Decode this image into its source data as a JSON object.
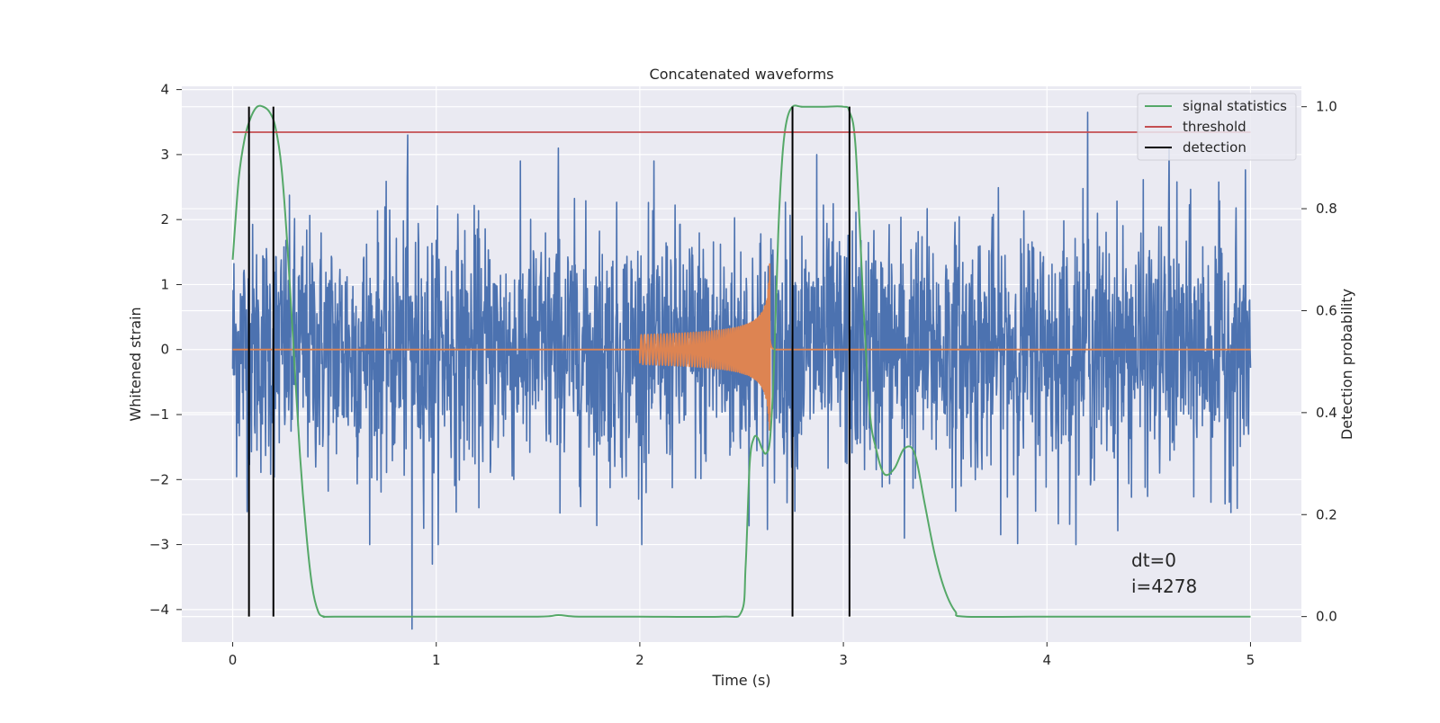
{
  "chart_data": {
    "type": "line",
    "title": "Concatenated waveforms",
    "xlabel": "Time (s)",
    "ylabel": "Whitened strain",
    "y2label": "Detection probability",
    "xlim": [
      -0.25,
      5.25
    ],
    "ylim": [
      -4.5,
      4.05
    ],
    "y2lim": [
      -0.05,
      1.04
    ],
    "xticks": [
      0,
      1,
      2,
      3,
      4,
      5
    ],
    "xtick_labels": [
      "0",
      "1",
      "2",
      "3",
      "4",
      "5"
    ],
    "yticks": [
      -4,
      -3,
      -2,
      -1,
      0,
      1,
      2,
      3,
      4
    ],
    "ytick_labels": [
      "−4",
      "−3",
      "−2",
      "−1",
      "0",
      "1",
      "2",
      "3",
      "4"
    ],
    "y2ticks": [
      0.0,
      0.2,
      0.4,
      0.6,
      0.8,
      1.0
    ],
    "y2tick_labels": [
      "0.0",
      "0.2",
      "0.4",
      "0.6",
      "0.8",
      "1.0"
    ],
    "grid": true,
    "legend_position": "top-right",
    "series": [
      {
        "name": "",
        "kind": "noise",
        "axis": "left",
        "color": "#4c72b0",
        "x_range": [
          0,
          5
        ],
        "noise_std": 0.95,
        "peaks": [
          [
            0.88,
            -4.3
          ],
          [
            0.86,
            3.3
          ],
          [
            4.2,
            3.65
          ],
          [
            0.98,
            -3.3
          ],
          [
            1.6,
            3.1
          ],
          [
            3.03,
            -3.2
          ],
          [
            2.87,
            3.0
          ],
          [
            0.08,
            2.7
          ],
          [
            3.3,
            -2.9
          ],
          [
            4.6,
            3.1
          ]
        ]
      },
      {
        "name": "",
        "kind": "chirp",
        "axis": "left",
        "color": "#dd8452",
        "x_range": [
          0,
          5
        ],
        "chirp_start": 2.0,
        "chirp_end": 2.64,
        "peak_amplitude": 1.65
      },
      {
        "name": "signal statistics",
        "axis": "right",
        "color": "#55a868",
        "x": [
          0.0,
          0.03,
          0.06,
          0.09,
          0.12,
          0.15,
          0.18,
          0.21,
          0.24,
          0.27,
          0.3,
          0.33,
          0.36,
          0.39,
          0.42,
          0.45,
          0.5,
          1.0,
          1.5,
          1.6,
          1.7,
          2.0,
          2.4,
          2.5,
          2.52,
          2.54,
          2.56,
          2.58,
          2.6,
          2.62,
          2.64,
          2.66,
          2.68,
          2.7,
          2.72,
          2.75,
          2.8,
          2.9,
          3.0,
          3.03,
          3.06,
          3.1,
          3.13,
          3.16,
          3.2,
          3.25,
          3.3,
          3.35,
          3.4,
          3.45,
          3.5,
          3.55,
          3.6,
          4.0,
          5.0
        ],
        "y": [
          0.7,
          0.86,
          0.94,
          0.98,
          1.0,
          1.0,
          0.99,
          0.96,
          0.88,
          0.72,
          0.52,
          0.32,
          0.17,
          0.06,
          0.01,
          0.0,
          0.0,
          0.0,
          0.0,
          0.003,
          0.0,
          0.0,
          0.0,
          0.01,
          0.1,
          0.3,
          0.35,
          0.35,
          0.33,
          0.32,
          0.35,
          0.5,
          0.75,
          0.9,
          0.97,
          1.0,
          1.0,
          1.0,
          1.0,
          0.99,
          0.92,
          0.6,
          0.4,
          0.33,
          0.28,
          0.29,
          0.33,
          0.32,
          0.22,
          0.12,
          0.05,
          0.01,
          0.0,
          0.0,
          0.0
        ]
      },
      {
        "name": "threshold",
        "axis": "right",
        "color": "#c44e52",
        "x": [
          0.0,
          5.0
        ],
        "y": [
          0.95,
          0.95
        ]
      },
      {
        "name": "detection",
        "axis": "right",
        "color": "#000000",
        "kind": "vlines",
        "x": [
          0.08,
          0.2,
          2.75,
          3.03
        ],
        "ymin": 0.0,
        "ymax": 1.0
      }
    ],
    "annotations": {
      "dt": "dt=0",
      "i": "i=4278"
    }
  },
  "colors": {
    "plot_background": "#eaeaf2",
    "grid": "#ffffff",
    "legend_background": "#eaeaf2"
  }
}
